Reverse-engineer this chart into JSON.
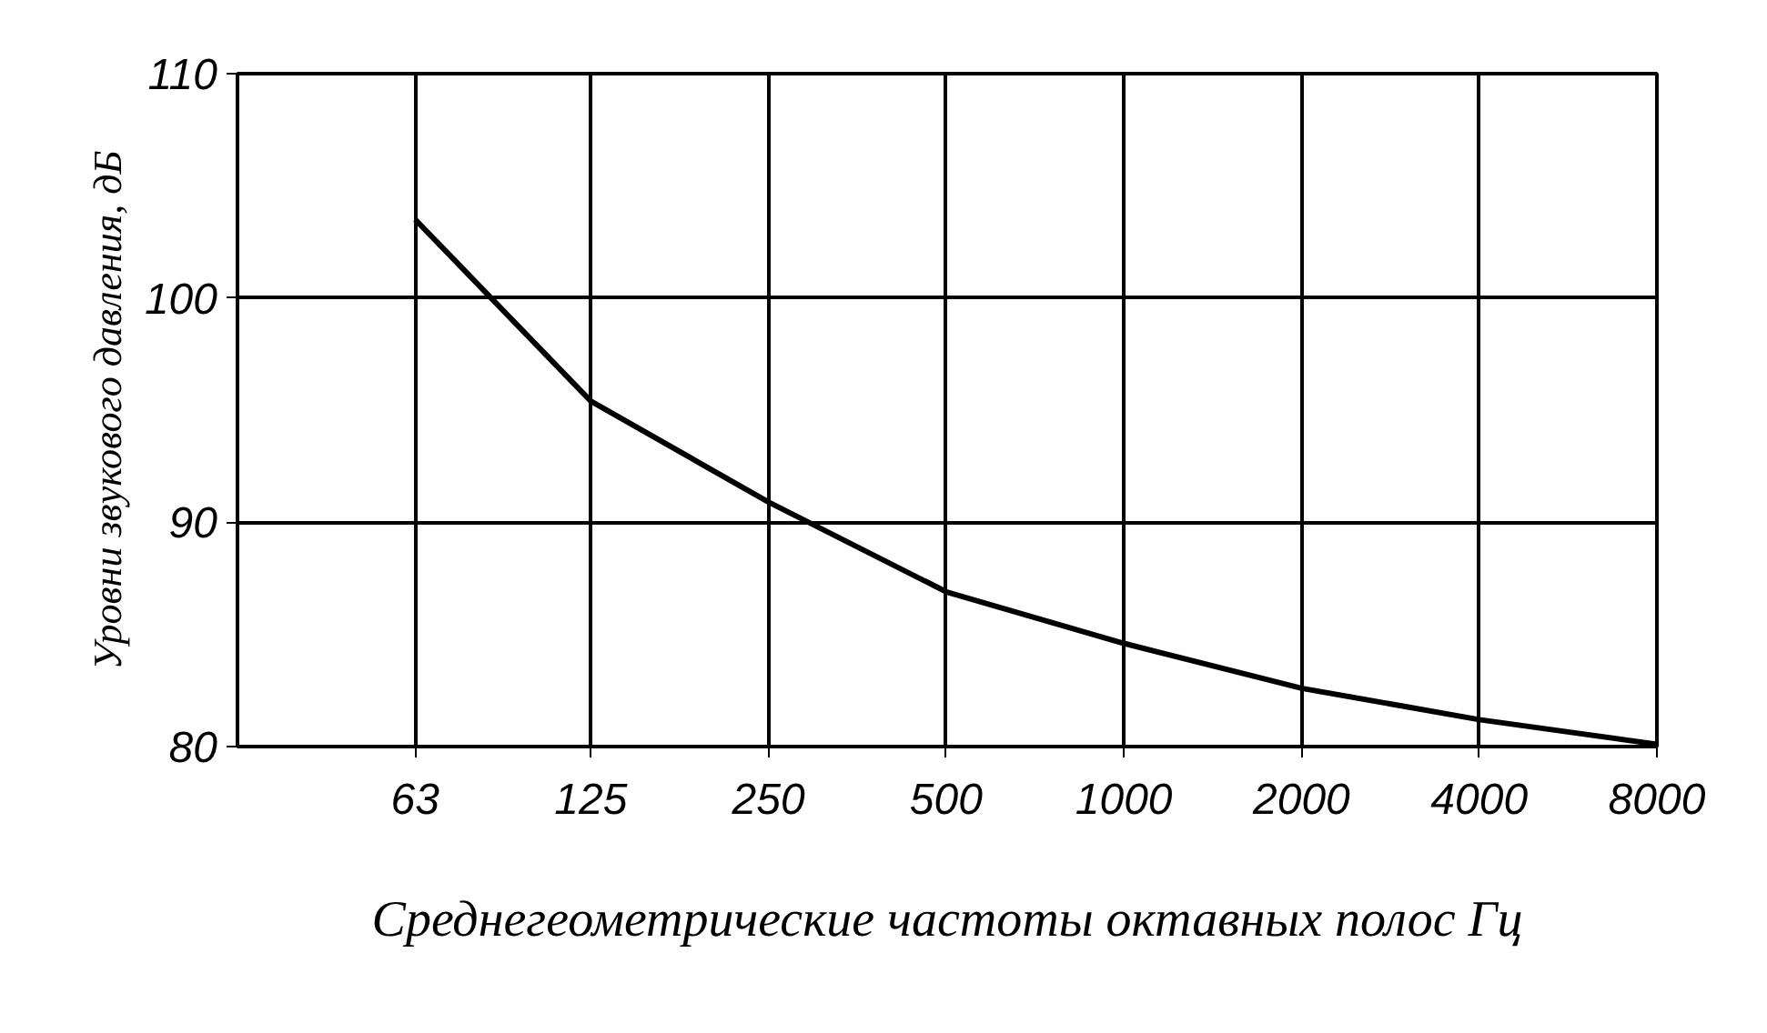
{
  "chart_data": {
    "type": "line",
    "xlabel": "Среднегеометрические частоты октавных полос Гц",
    "ylabel": "Уровни звукового давления, дБ",
    "x": [
      63,
      125,
      250,
      500,
      1000,
      2000,
      4000,
      8000
    ],
    "series": [
      {
        "color": "#000000",
        "values": [
          103.5,
          95.4,
          90.9,
          86.9,
          84.6,
          82.6,
          81.2,
          80.1
        ]
      }
    ],
    "log": "x",
    "xlim": [
      31.5,
      8000
    ],
    "xticks": [
      63,
      125,
      250,
      500,
      1000,
      2000,
      4000,
      8000
    ],
    "ylim": [
      80,
      110
    ],
    "yticks": [
      80,
      90,
      100,
      110
    ],
    "grid": true,
    "marker": "none",
    "line_style": "solid"
  }
}
